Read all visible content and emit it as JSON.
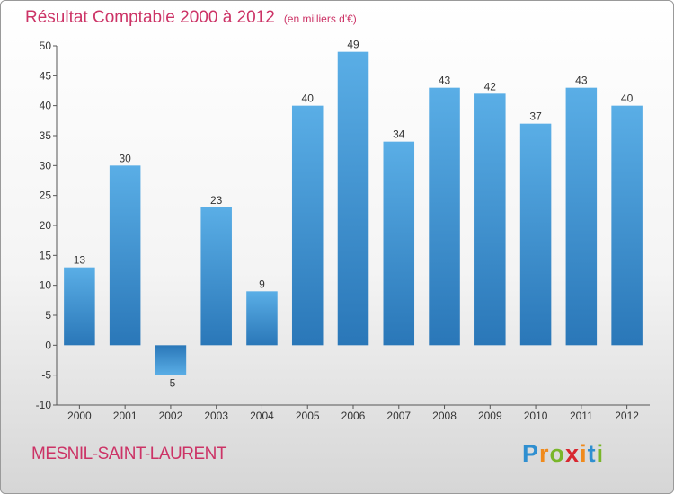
{
  "chart_data": {
    "type": "bar",
    "title": "Résultat Comptable 2000 à 2012",
    "subtitle": "(en milliers d'€)",
    "categories": [
      "2000",
      "2001",
      "2002",
      "2003",
      "2004",
      "2005",
      "2006",
      "2007",
      "2008",
      "2009",
      "2010",
      "2011",
      "2012"
    ],
    "values": [
      13,
      30,
      -5,
      23,
      9,
      40,
      49,
      34,
      43,
      42,
      37,
      43,
      40
    ],
    "ylim": [
      -10,
      50
    ],
    "yticks": [
      -10,
      -5,
      0,
      5,
      10,
      15,
      20,
      25,
      30,
      35,
      40,
      45,
      50
    ],
    "xlabel": "",
    "ylabel": "",
    "grid": false,
    "bar_color": "#2f7fc1"
  },
  "footer": {
    "place_name": "MESNIL-SAINT-LAURENT",
    "logo_letters": [
      "P",
      "r",
      "o",
      "x",
      "i",
      "t",
      "i"
    ],
    "logo_colors": [
      "#2f8fd0",
      "#f08a1c",
      "#79b62a",
      "#d8262f",
      "#f08a1c",
      "#2f8fd0",
      "#79b62a"
    ]
  }
}
